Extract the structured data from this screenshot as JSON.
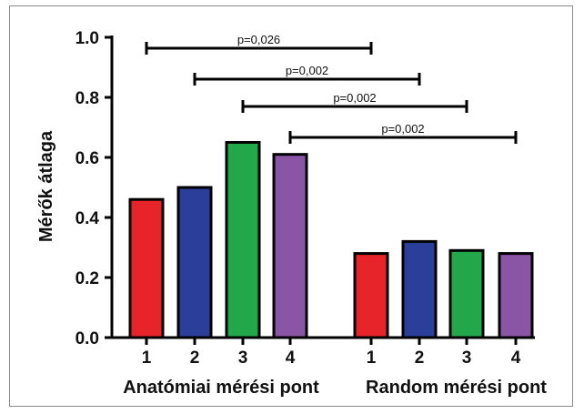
{
  "chart_data": {
    "type": "bar",
    "ylabel": "Mérők átlaga",
    "ylim": [
      0,
      1.0
    ],
    "yticks": [
      "0.0",
      "0.2",
      "0.4",
      "0.6",
      "0.8",
      "1.0"
    ],
    "groups": [
      {
        "label": "Anatómiai mérési pont",
        "categories": [
          "1",
          "2",
          "3",
          "4"
        ],
        "values": [
          0.46,
          0.5,
          0.65,
          0.61
        ]
      },
      {
        "label": "Random mérési pont",
        "categories": [
          "1",
          "2",
          "3",
          "4"
        ],
        "values": [
          0.28,
          0.32,
          0.29,
          0.28
        ]
      }
    ],
    "bar_colors": [
      "#e8242b",
      "#2b3f9a",
      "#22a84a",
      "#8b55a5"
    ],
    "significance": [
      {
        "label": "p=0,026",
        "from": [
          0,
          0
        ],
        "to": [
          1,
          0
        ]
      },
      {
        "label": "p=0,002",
        "from": [
          0,
          1
        ],
        "to": [
          1,
          1
        ]
      },
      {
        "label": "p=0,002",
        "from": [
          0,
          2
        ],
        "to": [
          1,
          2
        ]
      },
      {
        "label": "p=0,002",
        "from": [
          0,
          3
        ],
        "to": [
          1,
          3
        ]
      }
    ]
  }
}
